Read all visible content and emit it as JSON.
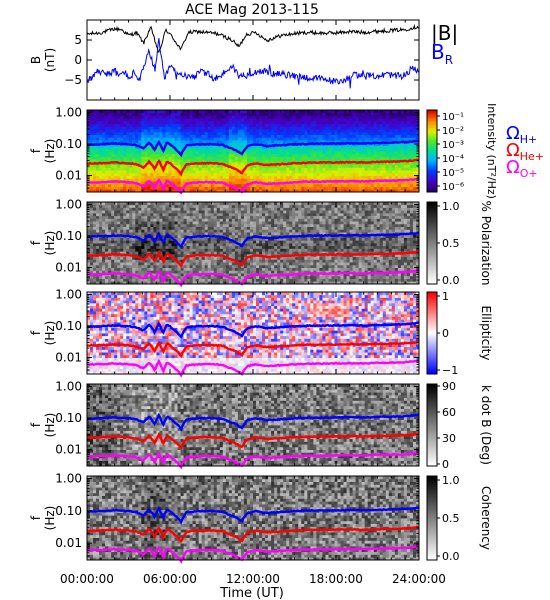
{
  "chart_data": {
    "type": "spectrogram",
    "title": "ACE Mag 2013-115",
    "xlabel": "Time (UT)",
    "x_ticks": [
      "00:00:00",
      "06:00:00",
      "12:00:00",
      "18:00:00",
      "24:00:00"
    ],
    "xlim_hours": [
      0,
      24
    ],
    "top_panel": {
      "ylabel_line1": "B",
      "ylabel_line2": "(nT)",
      "ylim": [
        -10,
        10
      ],
      "y_ticks": [
        5,
        0,
        -5
      ],
      "series": [
        {
          "name": "|B|",
          "color": "#000000",
          "points": [
            [
              0,
              6.5
            ],
            [
              1,
              6.8
            ],
            [
              2,
              7.8
            ],
            [
              2.5,
              7.6
            ],
            [
              3,
              6.2
            ],
            [
              3.6,
              6.8
            ],
            [
              4.1,
              4.2
            ],
            [
              4.6,
              8.2
            ],
            [
              5.2,
              1.6
            ],
            [
              5.7,
              7.6
            ],
            [
              6.2,
              5.6
            ],
            [
              6.8,
              2.6
            ],
            [
              7.3,
              6.8
            ],
            [
              7.9,
              7.1
            ],
            [
              8.6,
              6.9
            ],
            [
              9.4,
              6.6
            ],
            [
              10.1,
              5.6
            ],
            [
              10.5,
              4.9
            ],
            [
              11,
              3.3
            ],
            [
              11.5,
              6.4
            ],
            [
              12.2,
              6.9
            ],
            [
              13,
              4.9
            ],
            [
              14,
              6.1
            ],
            [
              15,
              6.6
            ],
            [
              16,
              6.9
            ],
            [
              17,
              6.7
            ],
            [
              18,
              6.8
            ],
            [
              19,
              7.1
            ],
            [
              20,
              6.9
            ],
            [
              21,
              7.2
            ],
            [
              22,
              7.4
            ],
            [
              23,
              7.6
            ],
            [
              23.6,
              8.1
            ],
            [
              24,
              8.4
            ]
          ]
        },
        {
          "name": "B_R",
          "color": "#0000ff",
          "points": [
            [
              0,
              -5.5
            ],
            [
              0.4,
              -4.2
            ],
            [
              0.8,
              -2.5
            ],
            [
              1.2,
              -3.2
            ],
            [
              1.6,
              -3.5
            ],
            [
              2,
              -2.6
            ],
            [
              2.3,
              -4.1
            ],
            [
              2.7,
              -2.8
            ],
            [
              3,
              -4.6
            ],
            [
              3.4,
              -3.2
            ],
            [
              3.8,
              -4.9
            ],
            [
              4.1,
              -2.1
            ],
            [
              4.5,
              2.4
            ],
            [
              4.9,
              -2.6
            ],
            [
              5.2,
              4.7
            ],
            [
              5.6,
              -5.1
            ],
            [
              6,
              -1.3
            ],
            [
              6.4,
              -3.2
            ],
            [
              6.9,
              -4.1
            ],
            [
              7.3,
              -3.6
            ],
            [
              7.8,
              -4.2
            ],
            [
              8.2,
              -2.9
            ],
            [
              8.7,
              -3.4
            ],
            [
              9.1,
              -4.6
            ],
            [
              9.6,
              -4.2
            ],
            [
              10.1,
              -2.5
            ],
            [
              10.5,
              -1.5
            ],
            [
              11,
              -4.1
            ],
            [
              11.5,
              -3.8
            ],
            [
              12,
              -3.1
            ],
            [
              12.6,
              -2.6
            ],
            [
              13,
              -3.2
            ],
            [
              13.5,
              -3.4
            ],
            [
              14,
              -3.6
            ],
            [
              14.6,
              -3.8
            ],
            [
              15.2,
              -4.1
            ],
            [
              15.8,
              -4.3
            ],
            [
              16.4,
              -4.6
            ],
            [
              17,
              -4.7
            ],
            [
              17.6,
              -5.1
            ],
            [
              18.2,
              -5.6
            ],
            [
              18.8,
              -4.6
            ],
            [
              19.4,
              -3.6
            ],
            [
              20,
              -4.1
            ],
            [
              20.6,
              -3.9
            ],
            [
              21.2,
              -3.9
            ],
            [
              21.8,
              -3.6
            ],
            [
              22.4,
              -4.1
            ],
            [
              23,
              -3.6
            ],
            [
              23.5,
              -2.1
            ],
            [
              24,
              -2.6
            ]
          ]
        }
      ]
    },
    "spectrogram_panels": [
      {
        "id": "intensity",
        "ylabel_line1": "f",
        "ylabel_line2": "(Hz)",
        "colorbar_label": "Intensity (nT²/Hz)",
        "colorbar_ticks": [
          "10⁻¹",
          "10⁻²",
          "10⁻³",
          "10⁻⁴",
          "10⁻⁵",
          "10⁻⁶"
        ],
        "colormap": "rainbow"
      },
      {
        "id": "polarization",
        "ylabel_line1": "f",
        "ylabel_line2": "(Hz)",
        "colorbar_label": "% Polarization",
        "colorbar_ticks": [
          "1.0",
          "0.5",
          "0.0"
        ],
        "colormap": "gray"
      },
      {
        "id": "ellipticity",
        "ylabel_line1": "f",
        "ylabel_line2": "(Hz)",
        "colorbar_label": "Ellipticity",
        "colorbar_ticks": [
          "1",
          "0",
          "−1"
        ],
        "colormap": "blue-white-red"
      },
      {
        "id": "kdotb",
        "ylabel_line1": "f",
        "ylabel_line2": "(Hz)",
        "colorbar_label": "k dot B (Deg)",
        "colorbar_ticks": [
          "90",
          "60",
          "30",
          "0"
        ],
        "colormap": "gray"
      },
      {
        "id": "coherency",
        "ylabel_line1": "f",
        "ylabel_line2": "(Hz)",
        "colorbar_label": "Coherency",
        "colorbar_ticks": [
          "1.0",
          "0.5",
          "0.0"
        ],
        "colormap": "gray"
      }
    ],
    "frequency_axis": {
      "scale": "log",
      "ylim": [
        0.003,
        1.2
      ],
      "y_ticks": [
        "1.00",
        "0.10",
        "0.01"
      ]
    },
    "gyrofrequency_lines": [
      {
        "name": "Ω_H+",
        "color": "#0000ff",
        "points": [
          [
            0,
            0.095
          ],
          [
            1,
            0.098
          ],
          [
            2,
            0.104
          ],
          [
            3,
            0.098
          ],
          [
            3.5,
            0.093
          ],
          [
            4.1,
            0.072
          ],
          [
            4.5,
            0.11
          ],
          [
            4.9,
            0.062
          ],
          [
            5.2,
            0.118
          ],
          [
            5.5,
            0.058
          ],
          [
            5.8,
            0.112
          ],
          [
            6.2,
            0.082
          ],
          [
            6.8,
            0.045
          ],
          [
            7.2,
            0.09
          ],
          [
            8,
            0.098
          ],
          [
            9,
            0.099
          ],
          [
            9.8,
            0.094
          ],
          [
            10.2,
            0.078
          ],
          [
            10.6,
            0.068
          ],
          [
            11.2,
            0.048
          ],
          [
            11.6,
            0.085
          ],
          [
            12.2,
            0.098
          ],
          [
            13,
            0.086
          ],
          [
            14,
            0.091
          ],
          [
            15,
            0.098
          ],
          [
            16,
            0.102
          ],
          [
            17,
            0.103
          ],
          [
            18,
            0.104
          ],
          [
            19,
            0.106
          ],
          [
            20,
            0.104
          ],
          [
            21,
            0.108
          ],
          [
            22,
            0.11
          ],
          [
            23,
            0.114
          ],
          [
            24,
            0.125
          ]
        ]
      },
      {
        "name": "Ω_He+",
        "color": "#ff0000",
        "points": [
          [
            0,
            0.024
          ],
          [
            1,
            0.0245
          ],
          [
            2,
            0.026
          ],
          [
            3,
            0.0245
          ],
          [
            3.5,
            0.023
          ],
          [
            4.1,
            0.018
          ],
          [
            4.5,
            0.0275
          ],
          [
            4.9,
            0.0155
          ],
          [
            5.2,
            0.0295
          ],
          [
            5.5,
            0.0145
          ],
          [
            5.8,
            0.028
          ],
          [
            6.2,
            0.0205
          ],
          [
            6.8,
            0.0112
          ],
          [
            7.2,
            0.0225
          ],
          [
            8,
            0.0245
          ],
          [
            9,
            0.0248
          ],
          [
            9.8,
            0.0235
          ],
          [
            10.2,
            0.0195
          ],
          [
            10.6,
            0.017
          ],
          [
            11.2,
            0.012
          ],
          [
            11.6,
            0.021
          ],
          [
            12.2,
            0.0245
          ],
          [
            13,
            0.0215
          ],
          [
            14,
            0.0228
          ],
          [
            15,
            0.0245
          ],
          [
            16,
            0.0255
          ],
          [
            17,
            0.0258
          ],
          [
            18,
            0.026
          ],
          [
            19,
            0.0265
          ],
          [
            20,
            0.026
          ],
          [
            21,
            0.027
          ],
          [
            22,
            0.0275
          ],
          [
            23,
            0.0285
          ],
          [
            24,
            0.031
          ]
        ]
      },
      {
        "name": "Ω_O+",
        "color": "#ff00ff",
        "points": [
          [
            0,
            0.006
          ],
          [
            1,
            0.0061
          ],
          [
            2,
            0.0065
          ],
          [
            3,
            0.0061
          ],
          [
            3.5,
            0.0058
          ],
          [
            4.1,
            0.0045
          ],
          [
            4.5,
            0.0069
          ],
          [
            4.9,
            0.0039
          ],
          [
            5.2,
            0.0074
          ],
          [
            5.5,
            0.0036
          ],
          [
            5.8,
            0.007
          ],
          [
            6.2,
            0.0051
          ],
          [
            6.8,
            0.0028
          ],
          [
            7.2,
            0.0056
          ],
          [
            8,
            0.0061
          ],
          [
            9,
            0.0062
          ],
          [
            9.8,
            0.0059
          ],
          [
            10.2,
            0.0049
          ],
          [
            10.6,
            0.0043
          ],
          [
            11.2,
            0.003
          ],
          [
            11.6,
            0.0053
          ],
          [
            12.2,
            0.0061
          ],
          [
            13,
            0.0054
          ],
          [
            14,
            0.0057
          ],
          [
            15,
            0.0061
          ],
          [
            16,
            0.0064
          ],
          [
            17,
            0.0064
          ],
          [
            18,
            0.0065
          ],
          [
            19,
            0.0066
          ],
          [
            20,
            0.0065
          ],
          [
            21,
            0.0068
          ],
          [
            22,
            0.0069
          ],
          [
            23,
            0.0071
          ],
          [
            24,
            0.0078
          ]
        ]
      }
    ],
    "legend_top": [
      {
        "text": "|B|",
        "color": "#000000"
      },
      {
        "text": "B",
        "sub": "R",
        "color": "#0000ff"
      }
    ],
    "legend_gyro": [
      {
        "text": "Ω",
        "sub": "H+",
        "color": "#0000ff"
      },
      {
        "text": "Ω",
        "sub": "He+",
        "color": "#ff0000"
      },
      {
        "text": "Ω",
        "sub": "O+",
        "color": "#ff00ff"
      }
    ]
  }
}
